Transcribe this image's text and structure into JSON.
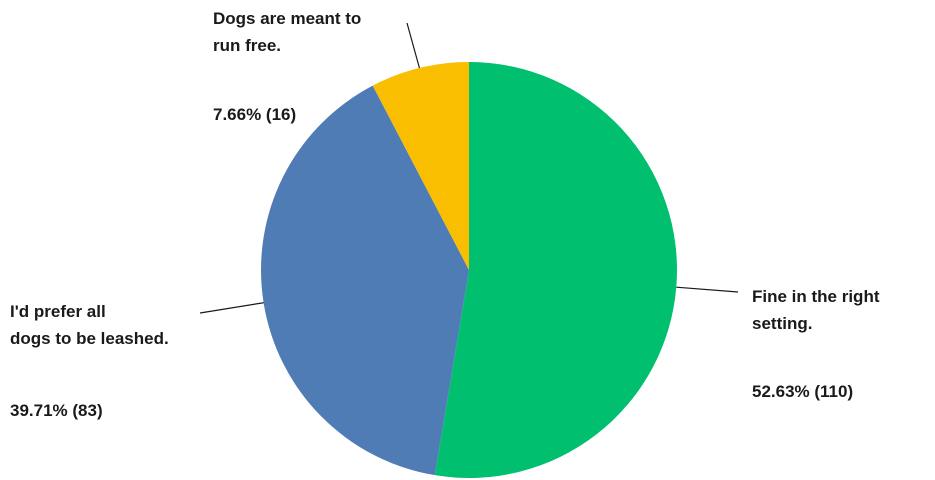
{
  "chart_data": {
    "type": "pie",
    "slices": [
      {
        "label_lines": [
          "Fine in the right",
          "setting."
        ],
        "percent": 52.63,
        "count": 110,
        "value_label": "52.63% (110)",
        "color": "#00bf6f"
      },
      {
        "label_lines": [
          "I'd prefer all",
          "dogs to be leashed."
        ],
        "percent": 39.71,
        "count": 83,
        "value_label": "39.71% (83)",
        "color": "#507cb6"
      },
      {
        "label_lines": [
          "Dogs are meant to",
          "run free."
        ],
        "percent": 7.66,
        "count": 16,
        "value_label": "7.66% (16)",
        "color": "#f9be00"
      }
    ]
  }
}
